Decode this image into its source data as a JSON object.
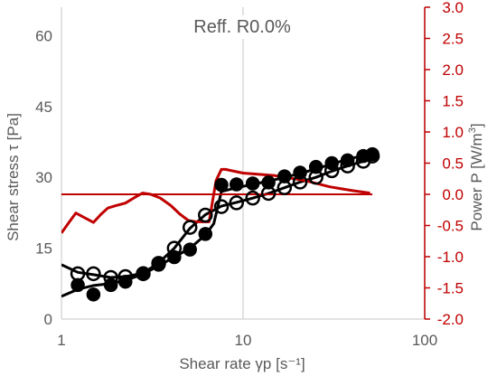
{
  "chart_data": {
    "type": "scatter",
    "title": "Reff. R0.0%",
    "xlabel": "Shear rate γp [s⁻¹]",
    "ylabel_left": "Shear stress τ [Pa]",
    "ylabel_right_parts": [
      "Power P [W/m",
      "3",
      "]"
    ],
    "x_scale": "log",
    "xlim": [
      1,
      100
    ],
    "x_ticks": [
      1,
      10,
      100
    ],
    "x_tick_labels": [
      "1",
      "10",
      "100"
    ],
    "ylim_left": [
      0,
      66
    ],
    "y_left_ticks": [
      0,
      15,
      30,
      45,
      60
    ],
    "y_left_tick_labels": [
      "0",
      "15",
      "30",
      "45",
      "60"
    ],
    "ylim_right": [
      -2.0,
      3.0
    ],
    "y_right_ticks": [
      -2.0,
      -1.5,
      -1.0,
      -0.5,
      0.0,
      0.5,
      1.0,
      1.5,
      2.0,
      2.5,
      3.0
    ],
    "y_right_tick_labels": [
      "-2.0",
      "-1.5",
      "-1.0",
      "-0.5",
      "0.0",
      "0.5",
      "1.0",
      "1.5",
      "2.0",
      "2.5",
      "3.0"
    ],
    "grid": {
      "x_major": true,
      "y": false
    },
    "colors": {
      "stress": "#000000",
      "power": "#c00000",
      "grid": "#d9d9d9",
      "text": "#595959"
    },
    "series": [
      {
        "role": "stress_filled_markers",
        "axis": "left",
        "marker": "filled-circle",
        "x": [
          1.23,
          1.5,
          1.87,
          2.25,
          2.82,
          3.43,
          4.18,
          5.1,
          6.2,
          7.6,
          9.2,
          11.3,
          13.8,
          16.9,
          20.6,
          25.2,
          30.8,
          37.6,
          45.9,
          51.5
        ],
        "y": [
          7.2,
          5.2,
          7.2,
          7.9,
          9.7,
          11.5,
          13.1,
          14.7,
          18.0,
          28.4,
          28.5,
          28.7,
          28.9,
          30.2,
          31.0,
          32.2,
          33.0,
          33.6,
          34.5,
          34.9
        ]
      },
      {
        "role": "stress_open_markers",
        "axis": "left",
        "marker": "open-circle",
        "x": [
          1.23,
          1.5,
          1.87,
          2.25,
          2.82,
          3.43,
          4.18,
          5.1,
          6.2,
          7.6,
          9.2,
          11.3,
          13.8,
          16.9,
          20.6,
          25.2,
          30.8,
          37.6,
          45.9,
          51.5
        ],
        "y": [
          9.6,
          9.6,
          8.8,
          9.0,
          9.6,
          11.8,
          15.0,
          19.4,
          22.0,
          23.8,
          24.6,
          25.6,
          26.6,
          27.8,
          29.0,
          30.0,
          31.4,
          32.4,
          33.4,
          34.5
        ]
      },
      {
        "role": "stress_fit_filled",
        "axis": "left",
        "line": "solid",
        "x": [
          1.0,
          1.23,
          1.5,
          1.87,
          2.25,
          2.82,
          3.43,
          4.18,
          5.1,
          6.2,
          6.9,
          7.6,
          9.2,
          11.3,
          13.8,
          16.9,
          20.6,
          25.2,
          30.8,
          37.6,
          45.9,
          51.5
        ],
        "y": [
          4.8,
          6.3,
          7.1,
          7.5,
          8.2,
          9.5,
          11.3,
          13.1,
          15.0,
          17.8,
          20.2,
          27.0,
          27.8,
          28.5,
          29.2,
          30.0,
          30.8,
          31.8,
          32.8,
          33.8,
          34.6,
          35.0
        ]
      },
      {
        "role": "stress_fit_open",
        "axis": "left",
        "line": "solid",
        "x": [
          1.0,
          1.23,
          1.5,
          1.87,
          2.25,
          2.82,
          3.43,
          4.18,
          5.1,
          6.2,
          7.6,
          9.2,
          11.3,
          13.8,
          16.9,
          20.6,
          25.2,
          30.8,
          37.6,
          45.9,
          51.5
        ],
        "y": [
          11.5,
          9.9,
          9.4,
          8.8,
          9.0,
          9.7,
          11.9,
          15.0,
          19.2,
          22.1,
          23.9,
          24.7,
          25.6,
          26.6,
          27.8,
          29.0,
          30.0,
          31.3,
          32.4,
          33.4,
          34.3
        ]
      },
      {
        "role": "power_curve",
        "axis": "right",
        "line": "solid",
        "x": [
          1.0,
          1.1,
          1.2,
          1.35,
          1.5,
          1.65,
          1.8,
          2.0,
          2.25,
          2.5,
          2.8,
          3.1,
          3.5,
          4.0,
          4.5,
          5.0,
          5.5,
          6.0,
          6.5,
          7.1,
          7.6,
          8.0,
          10.0,
          15.0,
          22.0,
          30.0,
          40.0,
          50.0
        ],
        "y": [
          -0.62,
          -0.45,
          -0.3,
          -0.38,
          -0.45,
          -0.32,
          -0.22,
          -0.18,
          -0.14,
          -0.06,
          0.02,
          0.0,
          -0.06,
          -0.18,
          -0.32,
          -0.42,
          -0.44,
          -0.44,
          -0.44,
          0.22,
          0.4,
          0.4,
          0.34,
          0.3,
          0.22,
          0.12,
          0.06,
          0.02
        ]
      },
      {
        "role": "power_zero_line",
        "axis": "right",
        "line": "solid",
        "x": [
          1.0,
          51.5
        ],
        "y": [
          0.0,
          0.0
        ]
      }
    ]
  }
}
